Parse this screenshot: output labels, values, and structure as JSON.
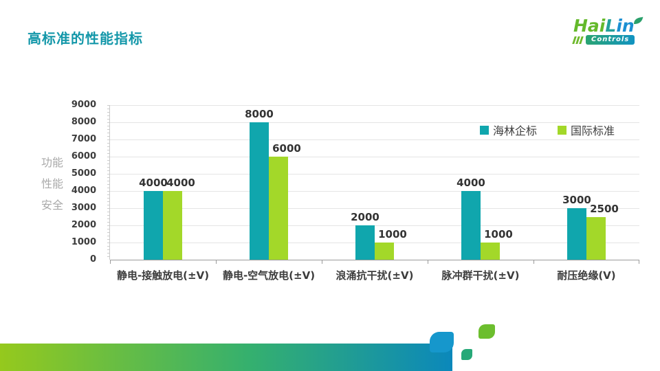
{
  "title": "高标准的性能指标",
  "logo": {
    "brand": "HaiLin",
    "brand_parts": [
      {
        "text": "Hai",
        "color": "#64b92b"
      },
      {
        "text": "L",
        "color": "#23a09c"
      },
      {
        "text": "in",
        "color": "#1b8fd2"
      }
    ],
    "subtitle": "Controls"
  },
  "side_labels": [
    "功能",
    "性能",
    "安全"
  ],
  "chart_data": {
    "type": "bar",
    "categories": [
      "静电-接触放电(±V)",
      "静电-空气放电(±V)",
      "浪涌抗干扰(±V)",
      "脉冲群干扰(±V)",
      "耐压绝缘(V)"
    ],
    "series": [
      {
        "name": "海林企标",
        "color": "#10a6ad",
        "values": [
          4000,
          8000,
          2000,
          4000,
          3000
        ]
      },
      {
        "name": "国际标准",
        "color": "#a3d829",
        "values": [
          4000,
          6000,
          1000,
          1000,
          2500
        ]
      }
    ],
    "title": "",
    "xlabel": "",
    "ylabel": "",
    "ylim": [
      0,
      9000
    ],
    "ytick_step": 1000,
    "grid": true,
    "legend_position": "top-right",
    "data_labels": true
  },
  "colors": {
    "title_text": "#1397a9",
    "series1": "#10a6ad",
    "series2": "#a3d829",
    "footer_gradient_start": "#95c91d",
    "footer_gradient_end": "#0b88bb",
    "leaf_blue": "#1697cc",
    "leaf_teal": "#26a878",
    "leaf_green": "#6cbe2e"
  }
}
